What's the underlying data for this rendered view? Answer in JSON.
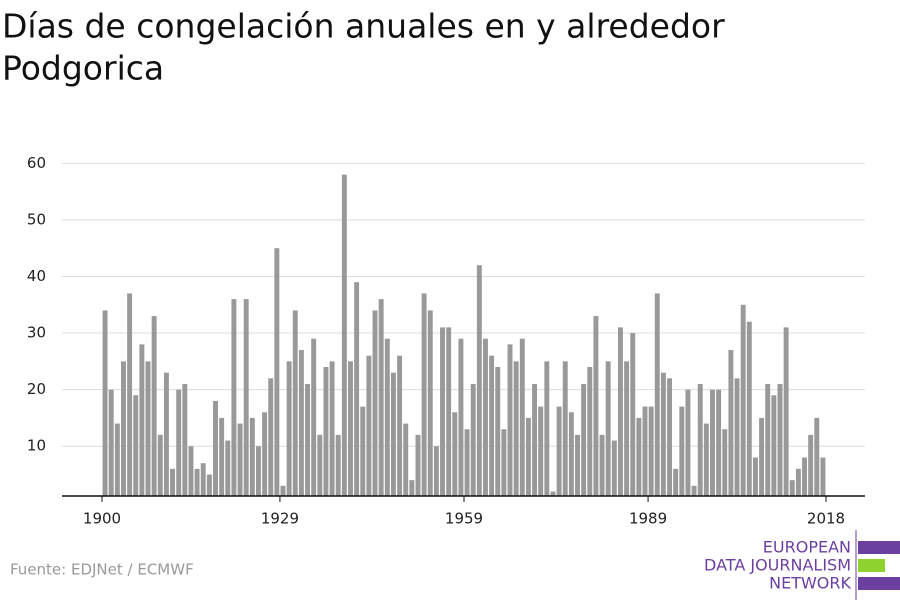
{
  "chart_data": {
    "type": "bar",
    "title": "Días de congelación anuales en y alrededor Podgorica",
    "source": "Fuente: EDJNet / ECMWF",
    "color": "#999999",
    "x": [
      1900,
      1901,
      1902,
      1903,
      1904,
      1905,
      1906,
      1907,
      1908,
      1909,
      1910,
      1911,
      1912,
      1913,
      1914,
      1915,
      1916,
      1917,
      1918,
      1919,
      1920,
      1921,
      1922,
      1923,
      1924,
      1925,
      1926,
      1927,
      1928,
      1929,
      1930,
      1931,
      1932,
      1933,
      1934,
      1935,
      1936,
      1937,
      1938,
      1939,
      1940,
      1941,
      1942,
      1943,
      1944,
      1945,
      1946,
      1947,
      1948,
      1949,
      1950,
      1951,
      1952,
      1953,
      1954,
      1955,
      1956,
      1957,
      1958,
      1959,
      1960,
      1961,
      1962,
      1963,
      1964,
      1965,
      1966,
      1967,
      1968,
      1969,
      1970,
      1971,
      1972,
      1973,
      1974,
      1975,
      1976,
      1977,
      1978,
      1979,
      1980,
      1981,
      1982,
      1983,
      1984,
      1985,
      1986,
      1987,
      1988,
      1989,
      1990,
      1991,
      1992,
      1993,
      1994,
      1995,
      1996,
      1997,
      1998,
      1999,
      2000,
      2001,
      2002,
      2003,
      2004,
      2005,
      2006,
      2007,
      2008,
      2009,
      2010,
      2011,
      2012,
      2013,
      2014,
      2015,
      2016,
      2017
    ],
    "values": [
      34,
      20,
      14,
      25,
      37,
      19,
      28,
      25,
      33,
      12,
      23,
      6,
      20,
      21,
      10,
      6,
      7,
      5,
      18,
      15,
      11,
      36,
      14,
      36,
      15,
      10,
      16,
      22,
      45,
      3,
      25,
      34,
      27,
      21,
      29,
      12,
      24,
      25,
      12,
      58,
      25,
      39,
      17,
      26,
      34,
      36,
      29,
      23,
      26,
      14,
      4,
      12,
      37,
      34,
      10,
      31,
      31,
      16,
      29,
      13,
      21,
      42,
      29,
      26,
      24,
      13,
      28,
      25,
      29,
      15,
      21,
      17,
      25,
      2,
      17,
      25,
      16,
      12,
      21,
      24,
      33,
      12,
      25,
      11,
      31,
      25,
      30,
      15,
      17,
      17,
      37,
      23,
      22,
      6,
      17,
      20,
      3,
      21,
      14,
      20,
      20,
      13,
      27,
      22,
      35,
      32,
      8,
      15,
      21,
      19,
      21,
      31,
      4,
      6,
      8,
      12,
      15,
      8
    ],
    "xlim": [
      1900,
      2018
    ],
    "xticks": [
      1900,
      1929,
      1959,
      1989,
      2018
    ],
    "ylim": [
      1.2,
      62
    ],
    "yticks": [
      10,
      20,
      30,
      40,
      50,
      60
    ],
    "grid": true
  },
  "logo": {
    "lines": [
      "EUROPEAN",
      "DATA JOURNALISM",
      "NETWORK"
    ]
  }
}
